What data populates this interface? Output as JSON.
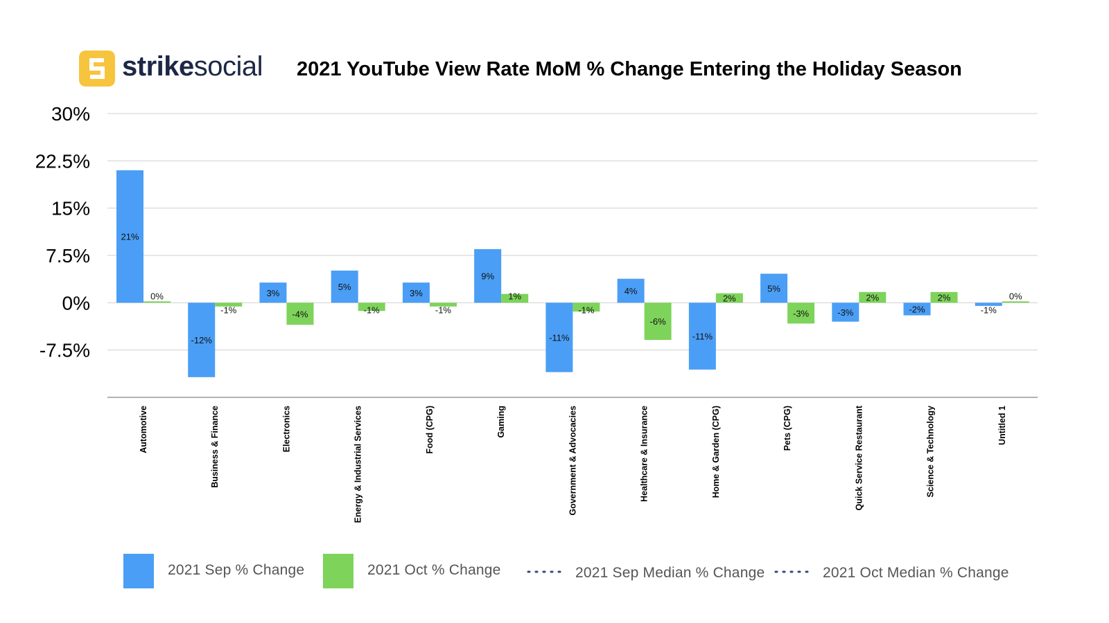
{
  "brand": {
    "name_bold": "strike",
    "name_light": "social",
    "logo_letter": "S",
    "logo_color": "#F7C43E"
  },
  "chart_data": {
    "type": "bar",
    "title": "2021 YouTube View Rate MoM % Change Entering the Holiday Season",
    "categories": [
      "Automotive",
      "Business & Finance",
      "Electronics",
      "Energy & Industrial Services",
      "Food (CPG)",
      "Gaming",
      "Government & Advocacies",
      "Healthcare & Insurance",
      "Home & Garden (CPG)",
      "Pets (CPG)",
      "Quick Service Restaurant",
      "Science & Technology",
      "Untitled 1"
    ],
    "series": [
      {
        "name": "2021 Sep % Change",
        "color": "#4B9EF5",
        "values": [
          21,
          -11.8,
          3.2,
          5.1,
          3.2,
          8.5,
          -11,
          3.8,
          -10.6,
          4.6,
          -3,
          -2,
          -0.5
        ],
        "labels": [
          "21%",
          "-12%",
          "3%",
          "5%",
          "3%",
          "9%",
          "-11%",
          "4%",
          "-11%",
          "5%",
          "-3%",
          "-2%",
          "-1%"
        ]
      },
      {
        "name": "2021 Oct % Change",
        "color": "#7ED35B",
        "values": [
          0,
          -0.6,
          -3.5,
          -1.3,
          -0.6,
          1.4,
          -1.4,
          -5.9,
          1.5,
          -3.3,
          1.7,
          1.7,
          0.2
        ],
        "labels": [
          "0%",
          "-1%",
          "-4%",
          "-1%",
          "-1%",
          "1%",
          "-1%",
          "-6%",
          "2%",
          "-3%",
          "2%",
          "2%",
          "0%"
        ]
      }
    ],
    "medians": [
      {
        "name": "2021 Sep Median % Change",
        "color": "#2C4A7D"
      },
      {
        "name": "2021 Oct  Median % Change",
        "color": "#2C4A7D"
      }
    ],
    "ylim": [
      -15,
      30
    ],
    "yticks": [
      30,
      22.5,
      15,
      7.5,
      0,
      -7.5
    ],
    "ytick_labels": [
      "30%",
      "22.5%",
      "15%",
      "7.5%",
      "0%",
      "-7.5%"
    ],
    "grid": true,
    "legend": "bottom"
  }
}
